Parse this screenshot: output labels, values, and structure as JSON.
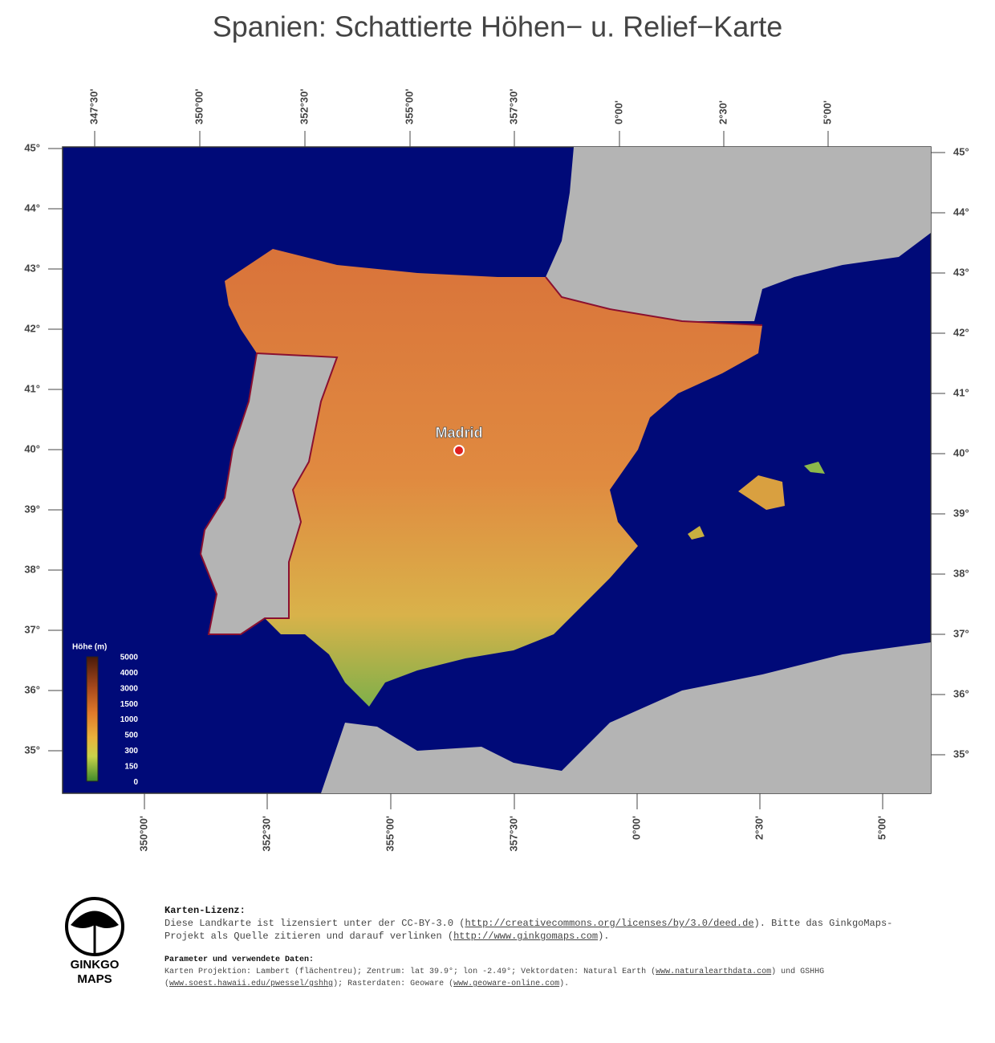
{
  "title": "Spanien: Schattierte Höhen− u. Relief−Karte",
  "top_longitudes": [
    "347°30'",
    "350°00'",
    "352°30'",
    "355°00'",
    "357°30'",
    "0°00'",
    "2°30'",
    "5°00'"
  ],
  "bottom_longitudes": [
    "350°00'",
    "352°30'",
    "355°00'",
    "357°30'",
    "0°00'",
    "2°30'",
    "5°00'"
  ],
  "latitudes": [
    "45°",
    "44°",
    "43°",
    "42°",
    "41°",
    "40°",
    "39°",
    "38°",
    "37°",
    "36°",
    "35°"
  ],
  "city": "Madrid",
  "legend": {
    "title": "Höhe (m)",
    "values": [
      5000,
      4000,
      3000,
      1500,
      1000,
      500,
      300,
      150,
      0
    ]
  },
  "logo": {
    "line1": "GINKGO",
    "line2": "MAPS"
  },
  "license": {
    "heading": "Karten-Lizenz:",
    "parts": [
      {
        "text": "Diese Landkarte ist lizensiert unter der CC-BY-3.0 ("
      },
      {
        "link": "http://creativecommons.org/licenses/by/3.0/deed.de"
      },
      {
        "text": ").  Bitte das GinkgoMaps-Projekt als Quelle zitieren und darauf verlinken ("
      },
      {
        "link": "http://www.ginkgomaps.com"
      },
      {
        "text": ")."
      }
    ]
  },
  "parameters": {
    "heading": "Parameter und verwendete Daten:",
    "parts": [
      {
        "text": "Karten Projektion: Lambert (flächentreu); Zentrum: lat 39.9°; lon -2.49°; Vektordaten: Natural Earth ("
      },
      {
        "link": "www.naturalearthdata.com"
      },
      {
        "text": ") und GSHHG ("
      },
      {
        "link": "www.soest.hawaii.edu/pwessel/gshhg"
      },
      {
        "text": "); Rasterdaten: Geoware ("
      },
      {
        "link": "www.geoware-online.com"
      },
      {
        "text": ")."
      }
    ]
  }
}
